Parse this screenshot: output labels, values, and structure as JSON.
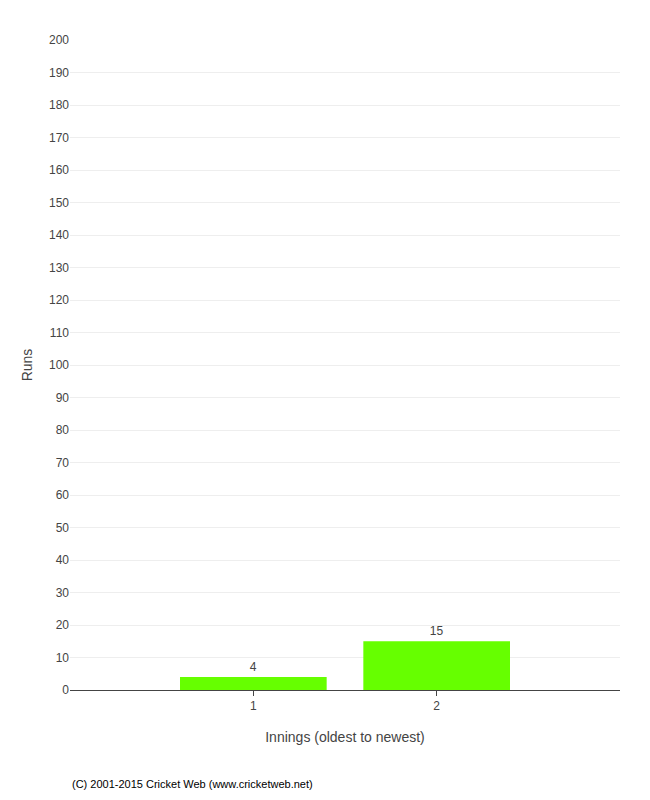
{
  "chart_data": {
    "type": "bar",
    "x": [
      1,
      2
    ],
    "values": [
      4,
      15
    ],
    "color": "#66ff00",
    "xlabel": "Innings (oldest to newest)",
    "ylabel": "Runs",
    "xlim": [
      0,
      3
    ],
    "xticks": [
      1,
      2
    ],
    "ylim": [
      0,
      200
    ],
    "yticks": [
      0,
      10,
      20,
      30,
      40,
      50,
      60,
      70,
      80,
      90,
      100,
      110,
      120,
      130,
      140,
      150,
      160,
      170,
      180,
      190,
      200
    ],
    "grid": true,
    "data_labels": true,
    "annotations": [
      "(C) 2001-2015 Cricket Web (www.cricketweb.net)"
    ]
  }
}
